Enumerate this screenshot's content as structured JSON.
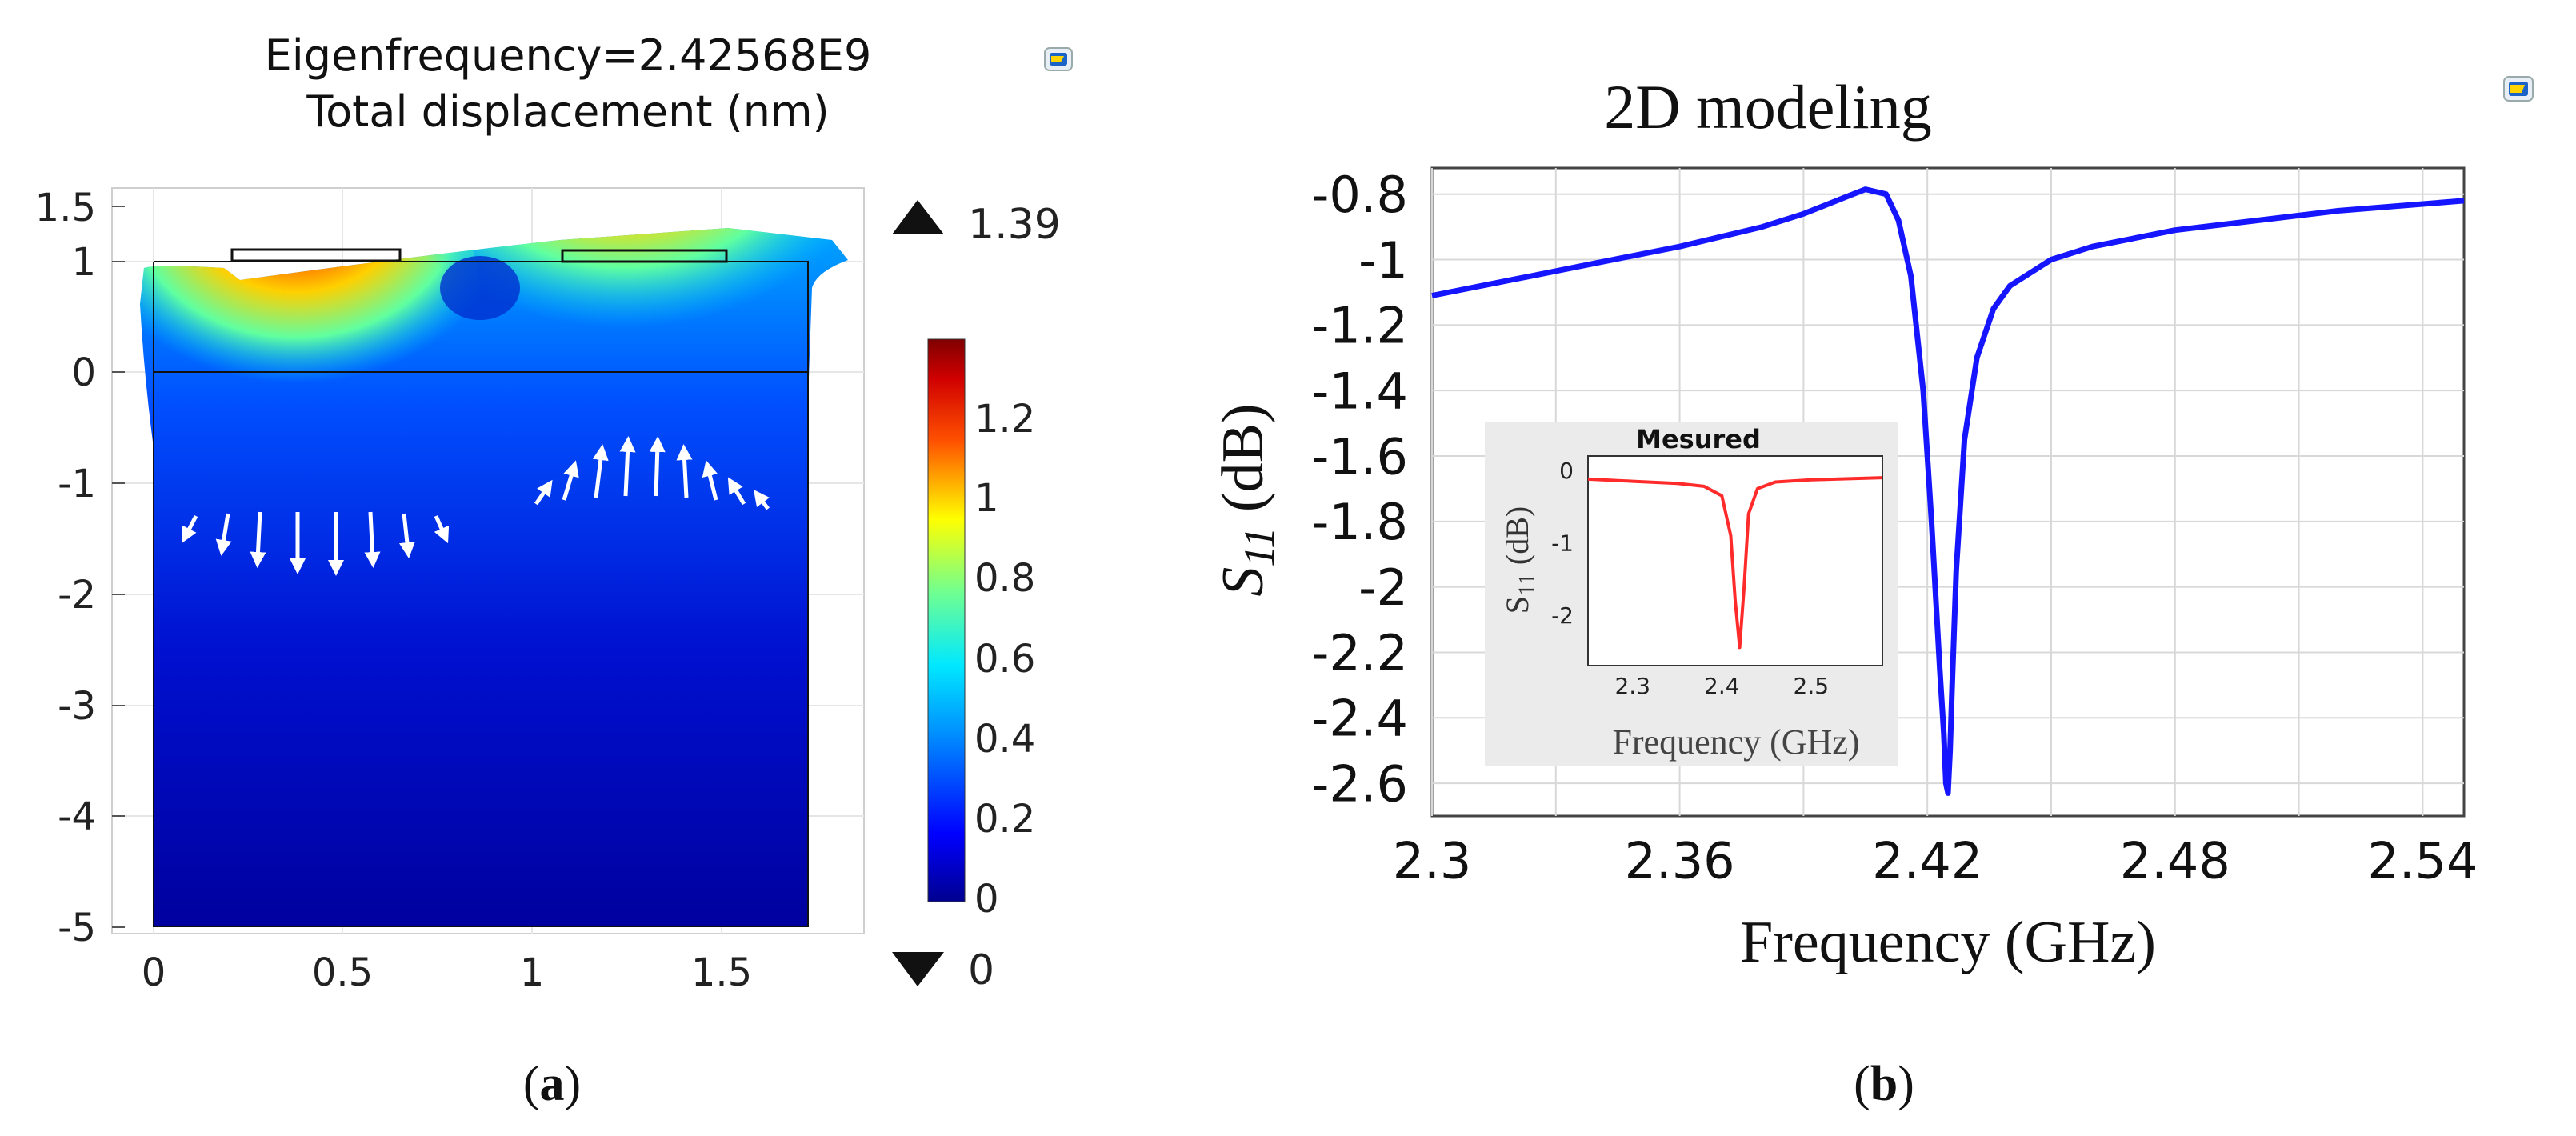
{
  "panel_a": {
    "title_line1": "Eigenfrequency=2.42568E9",
    "title_line2": "Total displacement (nm)",
    "x_ticks": [
      "0",
      "0.5",
      "1",
      "1.5"
    ],
    "y_ticks": [
      "1.5",
      "1",
      "0",
      "-1",
      "-2",
      "-3",
      "-4",
      "-5"
    ],
    "colorbar_ticks": [
      "1.2",
      "1",
      "0.8",
      "0.6",
      "0.4",
      "0.2",
      "0"
    ],
    "max_label": "1.39",
    "min_label": "0",
    "caption_letter": "a",
    "colors": [
      "#00008f",
      "#0030ff",
      "#00c8ff",
      "#60ff9f",
      "#ffe000",
      "#ff4000",
      "#8f0000"
    ]
  },
  "panel_b": {
    "caption_letter": "b"
  },
  "chart_data": [
    {
      "type": "line",
      "title": "2D modeling",
      "xlabel": "Frequency (GHz)",
      "ylabel_main": "S",
      "ylabel_sub": "11",
      "ylabel_unit": " (dB)",
      "xlim": [
        2.3,
        2.55
      ],
      "ylim": [
        -2.7,
        -0.72
      ],
      "x_ticks": [
        2.3,
        2.36,
        2.42,
        2.48,
        2.54
      ],
      "x_tick_labels": [
        "2.3",
        "2.36",
        "2.42",
        "2.48",
        "2.54"
      ],
      "y_ticks": [
        -0.8,
        -1,
        -1.2,
        -1.4,
        -1.6,
        -1.8,
        -2,
        -2.2,
        -2.4,
        -2.6
      ],
      "y_tick_labels": [
        "-0.8",
        "-1",
        "-1.2",
        "-1.4",
        "-1.6",
        "-1.8",
        "-2",
        "-2.2",
        "-2.4",
        "-2.6"
      ],
      "grid": true,
      "color": "#1515ff",
      "series": [
        {
          "x": [
            2.3,
            2.32,
            2.34,
            2.36,
            2.38,
            2.39,
            2.4,
            2.405,
            2.41,
            2.413,
            2.416,
            2.419,
            2.421,
            2.423,
            2.424,
            2.4245,
            2.425,
            2.4255,
            2.426,
            2.427,
            2.429,
            2.432,
            2.436,
            2.44,
            2.45,
            2.46,
            2.48,
            2.5,
            2.52,
            2.55
          ],
          "y": [
            -1.11,
            -1.06,
            -1.01,
            -0.96,
            -0.9,
            -0.86,
            -0.81,
            -0.785,
            -0.8,
            -0.88,
            -1.05,
            -1.4,
            -1.8,
            -2.25,
            -2.45,
            -2.6,
            -2.63,
            -2.5,
            -2.3,
            -1.95,
            -1.55,
            -1.3,
            -1.15,
            -1.08,
            -1.0,
            -0.96,
            -0.91,
            -0.88,
            -0.85,
            -0.82
          ]
        }
      ]
    },
    {
      "type": "line",
      "title": "Mesured",
      "xlabel": "Frequency (GHz)",
      "ylabel_main": "S",
      "ylabel_sub": "11",
      "ylabel_unit": " (dB)",
      "xlim": [
        2.25,
        2.58
      ],
      "ylim": [
        -2.7,
        0.2
      ],
      "x_ticks": [
        2.3,
        2.4,
        2.5
      ],
      "x_tick_labels": [
        "2.3",
        "2.4",
        "2.5"
      ],
      "y_ticks": [
        0,
        -1,
        -2
      ],
      "y_tick_labels": [
        "0",
        "-1",
        "-2"
      ],
      "grid": false,
      "color": "#ff2a2a",
      "series": [
        {
          "x": [
            2.25,
            2.3,
            2.35,
            2.38,
            2.4,
            2.41,
            2.415,
            2.42,
            2.425,
            2.43,
            2.44,
            2.46,
            2.5,
            2.58
          ],
          "y": [
            -0.12,
            -0.15,
            -0.18,
            -0.22,
            -0.35,
            -0.9,
            -1.8,
            -2.45,
            -1.6,
            -0.6,
            -0.25,
            -0.16,
            -0.13,
            -0.1
          ]
        }
      ]
    }
  ]
}
